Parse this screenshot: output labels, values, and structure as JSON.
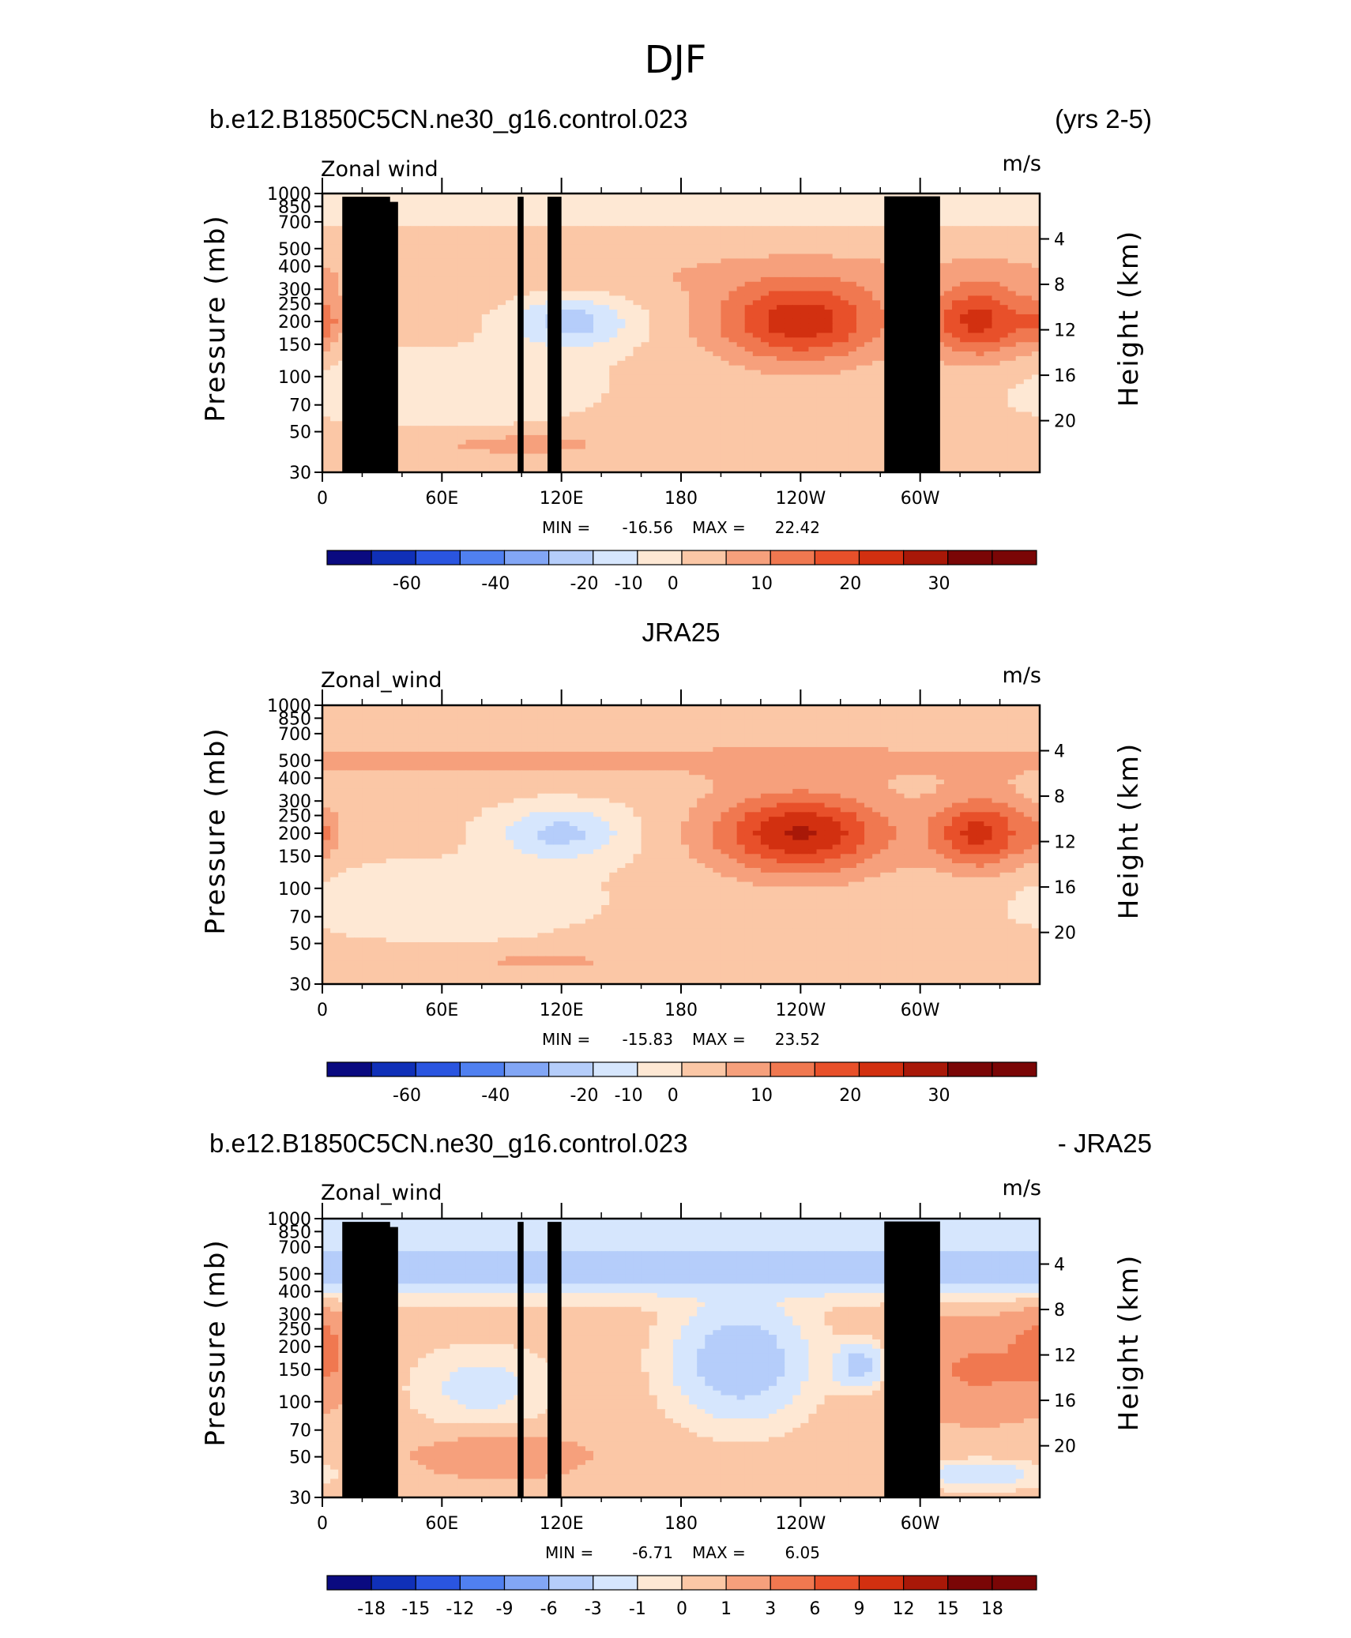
{
  "title": "DJF",
  "colors": {
    "c_-6": "#0a0a80",
    "c_-5": "#1030b8",
    "c_-4": "#2a55e0",
    "c_-3": "#5080f0",
    "c_-2": "#82a6f5",
    "c_-1": "#b5cdfa",
    "c_0": "#d6e6fd",
    "c_1": "#fee8d4",
    "c_2": "#fbc7a6",
    "c_3": "#f6a07c",
    "c_4": "#f07850",
    "c_5": "#e8502a",
    "c_6": "#d23010",
    "c_7": "#a81808",
    "c_8": "#7a0606",
    "topo": "#000000"
  },
  "chart_data": [
    {
      "type": "heatmap",
      "title_left": "b.e12.B1850C5CN.ne30_g16.control.023",
      "title_right": "(yrs 2-5)",
      "left_string": "Zonal wind",
      "units": "m/s",
      "ylabel": "Pressure (mb)",
      "ylabel_right": "Height (km)",
      "ylim": [
        1000,
        30
      ],
      "y_ticks": [
        "30",
        "50",
        "70",
        "100",
        "150",
        "200",
        "250",
        "300",
        "400",
        "500",
        "700",
        "850",
        "1000"
      ],
      "y_right_ticks": [
        "20",
        "16",
        "12",
        "8",
        "4"
      ],
      "x_ticks": [
        "0",
        "60E",
        "120E",
        "180",
        "120W",
        "60W"
      ],
      "xlim": [
        0,
        360
      ],
      "min_label": "MIN =",
      "min_value": "-16.56",
      "max_label": "MAX =",
      "max_value": "22.42",
      "colorbar_labels": [
        "-60",
        "-40",
        "-20",
        "-10",
        "0",
        "10",
        "20",
        "30"
      ],
      "features": [
        {
          "kind": "blob",
          "lon": 125,
          "p": 150,
          "value": -14,
          "wlon": 30,
          "hp": 0.35
        },
        {
          "kind": "blob",
          "lon": 240,
          "p": 150,
          "value": 22,
          "wlon": 42,
          "hp": 0.5
        },
        {
          "kind": "blob",
          "lon": 330,
          "p": 150,
          "value": 20,
          "wlon": 26,
          "hp": 0.45
        },
        {
          "kind": "blob",
          "lon": 0,
          "p": 150,
          "value": 8,
          "wlon": 10,
          "hp": 0.3
        },
        {
          "kind": "blob",
          "lon": 100,
          "p": 700,
          "value": 6,
          "wlon": 50,
          "hp": 0.15
        },
        {
          "kind": "band",
          "p": 35,
          "value": -4,
          "hp": 0.25
        },
        {
          "kind": "band",
          "p": 80,
          "value": 3,
          "hp": 0.35
        },
        {
          "kind": "blob",
          "lon": 60,
          "p": 350,
          "value": -6,
          "wlon": 70,
          "hp": 0.45
        }
      ],
      "topography": true
    },
    {
      "type": "heatmap",
      "title_center": "JRA25",
      "left_string": "Zonal_wind",
      "units": "m/s",
      "ylabel": "Pressure (mb)",
      "ylabel_right": "Height (km)",
      "ylim": [
        1000,
        30
      ],
      "y_ticks": [
        "30",
        "50",
        "70",
        "100",
        "150",
        "200",
        "250",
        "300",
        "400",
        "500",
        "700",
        "850",
        "1000"
      ],
      "y_right_ticks": [
        "20",
        "16",
        "12",
        "8",
        "4"
      ],
      "x_ticks": [
        "0",
        "60E",
        "120E",
        "180",
        "120W",
        "60W"
      ],
      "xlim": [
        0,
        360
      ],
      "min_label": "MIN =",
      "min_value": "-15.83",
      "max_label": "MAX =",
      "max_value": "23.52",
      "colorbar_labels": [
        "-60",
        "-40",
        "-20",
        "-10",
        "0",
        "10",
        "20",
        "30"
      ],
      "features": [
        {
          "kind": "blob",
          "lon": 120,
          "p": 150,
          "value": -13,
          "wlon": 32,
          "hp": 0.35
        },
        {
          "kind": "blob",
          "lon": 240,
          "p": 150,
          "value": 24,
          "wlon": 44,
          "hp": 0.5
        },
        {
          "kind": "blob",
          "lon": 330,
          "p": 150,
          "value": 20,
          "wlon": 24,
          "hp": 0.45
        },
        {
          "kind": "blob",
          "lon": 0,
          "p": 150,
          "value": 6,
          "wlon": 10,
          "hp": 0.3
        },
        {
          "kind": "blob",
          "lon": 110,
          "p": 750,
          "value": 5,
          "wlon": 45,
          "hp": 0.12
        },
        {
          "kind": "band",
          "p": 35,
          "value": 2,
          "hp": 0.25
        },
        {
          "kind": "band",
          "p": 60,
          "value": 4,
          "hp": 0.3
        },
        {
          "kind": "blob",
          "lon": 60,
          "p": 350,
          "value": -6,
          "wlon": 70,
          "hp": 0.45
        }
      ],
      "topography": false
    },
    {
      "type": "heatmap",
      "title_left": "b.e12.B1850C5CN.ne30_g16.control.023",
      "title_right": "- JRA25",
      "left_string": "Zonal_wind",
      "units": "m/s",
      "ylabel": "Pressure (mb)",
      "ylabel_right": "Height (km)",
      "ylim": [
        1000,
        30
      ],
      "y_ticks": [
        "30",
        "50",
        "70",
        "100",
        "150",
        "200",
        "250",
        "300",
        "400",
        "500",
        "700",
        "850",
        "1000"
      ],
      "y_right_ticks": [
        "20",
        "16",
        "12",
        "8",
        "4"
      ],
      "x_ticks": [
        "0",
        "60E",
        "120E",
        "180",
        "120W",
        "60W"
      ],
      "xlim": [
        0,
        360
      ],
      "min_label": "MIN =",
      "min_value": "-6.71",
      "max_label": "MAX =",
      "max_value": "6.05",
      "colorbar_labels": [
        "-18",
        "-15",
        "-12",
        "-9",
        "-6",
        "-3",
        "-1",
        "0",
        "1",
        "3",
        "6",
        "9",
        "12",
        "15",
        "18"
      ],
      "features": [
        {
          "kind": "band",
          "p": 55,
          "value": -5,
          "hp": 0.3
        },
        {
          "kind": "band",
          "p": 32,
          "value": -3,
          "hp": 0.15
        },
        {
          "kind": "blob",
          "lon": 210,
          "p": 180,
          "value": -6,
          "wlon": 28,
          "hp": 0.6
        },
        {
          "kind": "blob",
          "lon": 270,
          "p": 190,
          "value": -5,
          "wlon": 12,
          "hp": 0.25
        },
        {
          "kind": "blob",
          "lon": 330,
          "p": 200,
          "value": 3,
          "wlon": 40,
          "hp": 0.6
        },
        {
          "kind": "blob",
          "lon": 0,
          "p": 150,
          "value": 3,
          "wlon": 12,
          "hp": 0.4
        },
        {
          "kind": "blob",
          "lon": 90,
          "p": 600,
          "value": 2.5,
          "wlon": 40,
          "hp": 0.25
        },
        {
          "kind": "blob",
          "lon": 80,
          "p": 250,
          "value": -2,
          "wlon": 30,
          "hp": 0.4
        },
        {
          "kind": "blob",
          "lon": 330,
          "p": 750,
          "value": -3,
          "wlon": 25,
          "hp": 0.15
        }
      ],
      "topography": true
    }
  ]
}
